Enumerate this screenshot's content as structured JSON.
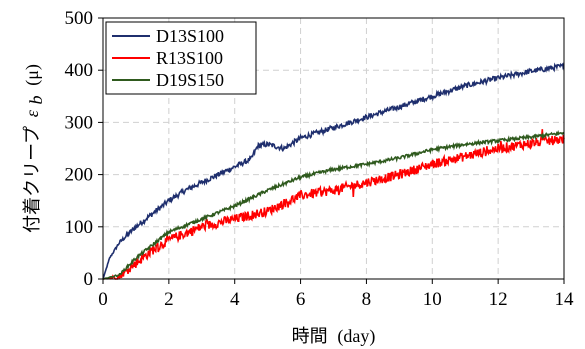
{
  "chart_data": {
    "type": "line",
    "xlabel": "時間",
    "xlabel_unit": "(day)",
    "ylabel": "付着クリープ",
    "ylabel_symbol": "ε",
    "ylabel_subscript": "b",
    "ylabel_unit": "(μ)",
    "xlim": [
      0,
      14
    ],
    "ylim": [
      0,
      500
    ],
    "xticks": [
      0,
      2,
      4,
      6,
      8,
      10,
      12,
      14
    ],
    "yticks": [
      0,
      100,
      200,
      300,
      400,
      500
    ],
    "grid": true,
    "legend_position": "top-left",
    "series": [
      {
        "name": "D13S100",
        "color": "#1f2f6e",
        "x": [
          0,
          0.2,
          0.5,
          1,
          1.5,
          2,
          2.5,
          3,
          3.5,
          4,
          4.5,
          4.7,
          5,
          5.5,
          6,
          7,
          8,
          9,
          10,
          11,
          12,
          13,
          14
        ],
        "y": [
          0,
          40,
          70,
          100,
          125,
          150,
          170,
          185,
          200,
          215,
          230,
          255,
          258,
          250,
          270,
          290,
          310,
          330,
          350,
          370,
          385,
          398,
          408
        ]
      },
      {
        "name": "R13S100",
        "color": "#ff0000",
        "x": [
          0,
          0.5,
          1,
          1.5,
          2,
          3,
          4,
          5,
          5.5,
          6,
          7,
          8,
          9,
          10,
          11,
          12,
          13,
          14
        ],
        "y": [
          0,
          5,
          30,
          55,
          75,
          100,
          115,
          130,
          145,
          160,
          170,
          185,
          200,
          220,
          235,
          250,
          260,
          268
        ]
      },
      {
        "name": "D19S150",
        "color": "#2f5a1e",
        "x": [
          0,
          0.5,
          1,
          1.5,
          2,
          3,
          4,
          5,
          6,
          7,
          8,
          9,
          10,
          11,
          12,
          13,
          14
        ],
        "y": [
          0,
          8,
          40,
          65,
          90,
          115,
          140,
          170,
          195,
          210,
          220,
          232,
          248,
          258,
          265,
          272,
          280
        ]
      }
    ]
  }
}
